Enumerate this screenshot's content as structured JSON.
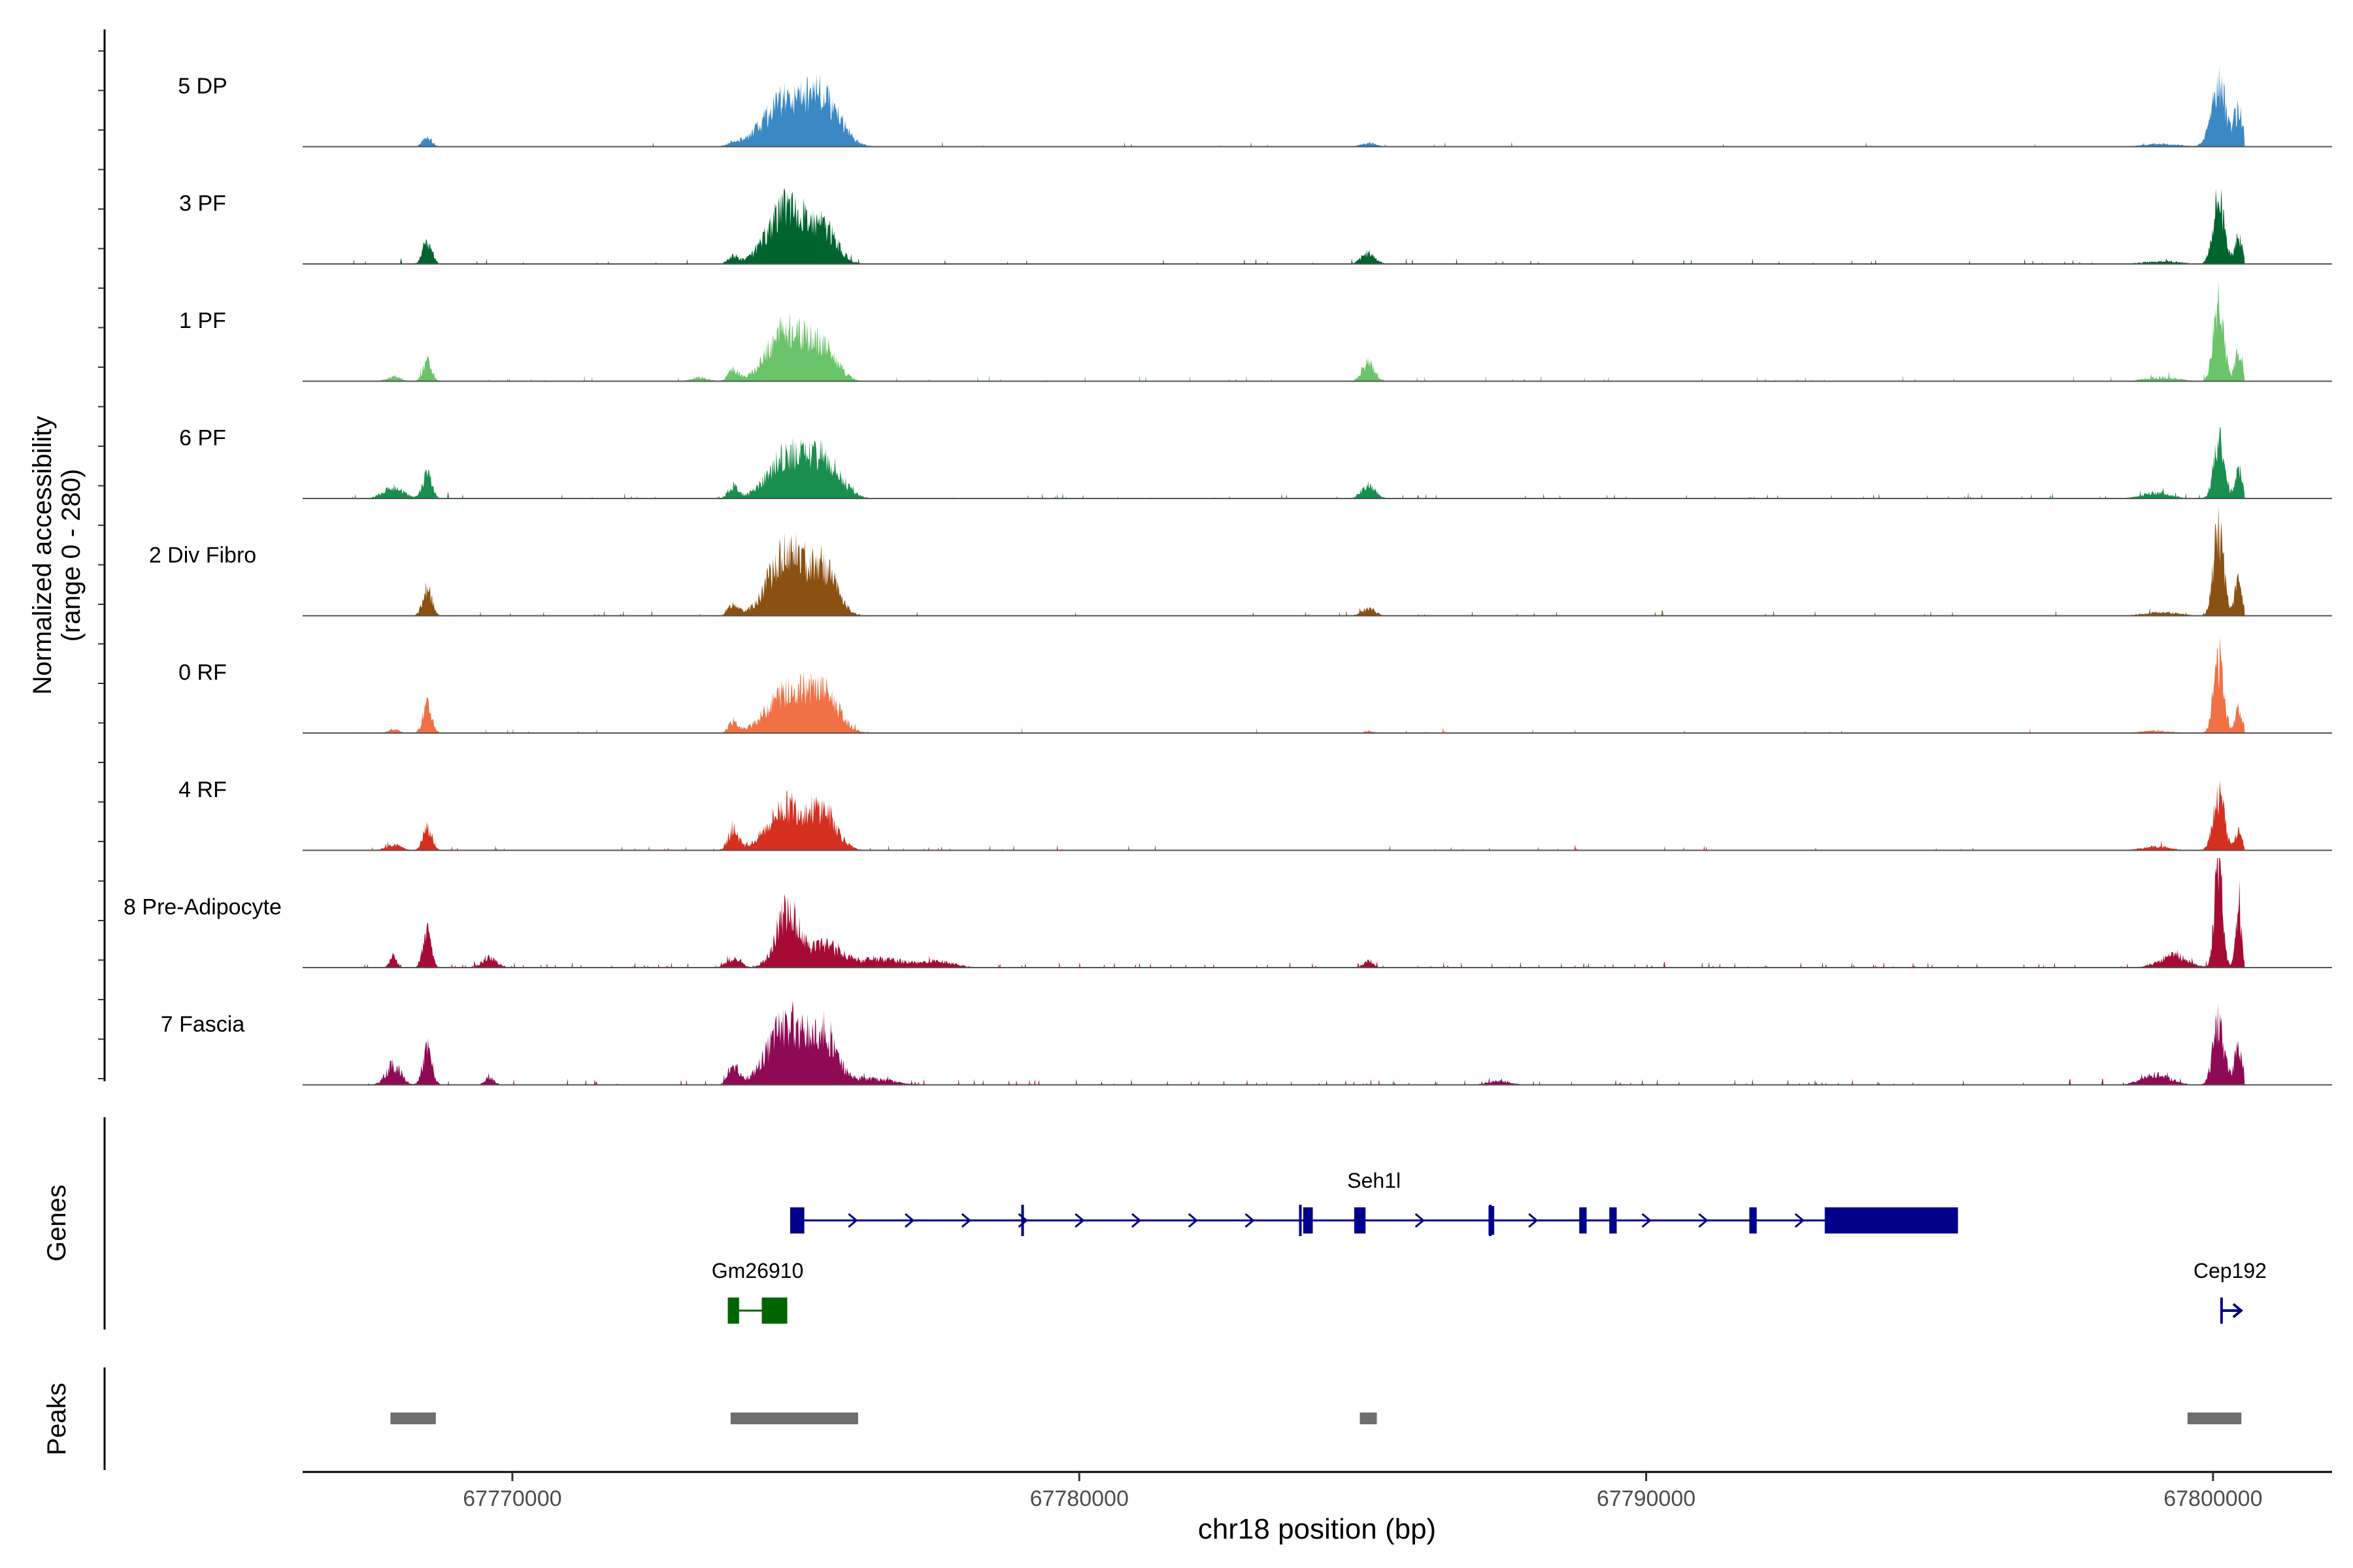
{
  "chart_data": {
    "type": "area",
    "title": "",
    "xlabel": "chr18 position (bp)",
    "ylabel_line1": "Normalized accessibility",
    "ylabel_line2": "(range 0 - 280)",
    "yrange": [
      0,
      280
    ],
    "xlim": [
      67766300,
      67802100
    ],
    "xticks": [
      67770000,
      67780000,
      67790000,
      67800000
    ],
    "xtick_labels": [
      "67770000",
      "67780000",
      "67790000",
      "67800000"
    ],
    "series": [
      {
        "name": "5 DP",
        "color": "#3A88C4",
        "noise": 0.01,
        "peaks": [
          [
            67768500,
            80,
            40
          ],
          [
            67773900,
            80,
            15
          ],
          [
            67774850,
            400,
            190
          ],
          [
            67775500,
            300,
            155
          ],
          [
            67785100,
            130,
            15
          ],
          [
            67799100,
            300,
            12
          ],
          [
            67800100,
            130,
            250
          ],
          [
            67800450,
            80,
            140
          ]
        ]
      },
      {
        "name": "3 PF",
        "color": "#00642F",
        "noise": 0.018,
        "peaks": [
          [
            67768500,
            80,
            95
          ],
          [
            67773900,
            90,
            30
          ],
          [
            67774850,
            330,
            235
          ],
          [
            67775500,
            230,
            130
          ],
          [
            67785100,
            120,
            45
          ],
          [
            67799100,
            300,
            12
          ],
          [
            67800100,
            100,
            260
          ],
          [
            67800450,
            70,
            110
          ]
        ]
      },
      {
        "name": "1 PF",
        "color": "#6BC46A",
        "noise": 0.02,
        "peaks": [
          [
            67767900,
            120,
            20
          ],
          [
            67768500,
            80,
            80
          ],
          [
            67773300,
            150,
            15
          ],
          [
            67773900,
            90,
            45
          ],
          [
            67774850,
            330,
            215
          ],
          [
            67775500,
            230,
            125
          ],
          [
            67785100,
            110,
            75
          ],
          [
            67799100,
            300,
            15
          ],
          [
            67800100,
            90,
            335
          ],
          [
            67800450,
            60,
            130
          ]
        ]
      },
      {
        "name": "6 PF",
        "color": "#1A8E4C",
        "noise": 0.032,
        "peaks": [
          [
            67767900,
            180,
            45
          ],
          [
            67768500,
            80,
            100
          ],
          [
            67773900,
            90,
            50
          ],
          [
            67774850,
            330,
            175
          ],
          [
            67775500,
            280,
            160
          ],
          [
            67785100,
            120,
            55
          ],
          [
            67799000,
            250,
            25
          ],
          [
            67800100,
            90,
            235
          ],
          [
            67800450,
            70,
            115
          ]
        ]
      },
      {
        "name": "2 Div Fibro",
        "color": "#8B5112",
        "noise": 0.02,
        "peaks": [
          [
            67768500,
            80,
            110
          ],
          [
            67773900,
            90,
            45
          ],
          [
            67774850,
            320,
            265
          ],
          [
            67775500,
            230,
            175
          ],
          [
            67785100,
            120,
            30
          ],
          [
            67799100,
            300,
            15
          ],
          [
            67800100,
            90,
            360
          ],
          [
            67800450,
            70,
            140
          ]
        ]
      },
      {
        "name": "0 RF",
        "color": "#F07145",
        "noise": 0.012,
        "peaks": [
          [
            67767900,
            100,
            15
          ],
          [
            67768500,
            80,
            110
          ],
          [
            67773900,
            80,
            45
          ],
          [
            67774850,
            350,
            170
          ],
          [
            67775500,
            260,
            150
          ],
          [
            67785100,
            100,
            8
          ],
          [
            67799000,
            250,
            10
          ],
          [
            67800100,
            90,
            300
          ],
          [
            67800450,
            60,
            110
          ]
        ]
      },
      {
        "name": "4 RF",
        "color": "#D5301F",
        "noise": 0.02,
        "peaks": [
          [
            67767900,
            130,
            25
          ],
          [
            67768500,
            80,
            95
          ],
          [
            67773900,
            90,
            85
          ],
          [
            67774850,
            330,
            180
          ],
          [
            67775500,
            230,
            145
          ],
          [
            67799000,
            250,
            15
          ],
          [
            67800100,
            100,
            225
          ],
          [
            67800450,
            60,
            80
          ]
        ]
      },
      {
        "name": "8 Pre-Adipocyte",
        "color": "#A60C33",
        "noise": 0.05,
        "peaks": [
          [
            67767900,
            60,
            50
          ],
          [
            67768500,
            70,
            150
          ],
          [
            67769600,
            130,
            40
          ],
          [
            67773900,
            120,
            40
          ],
          [
            67774850,
            200,
            225
          ],
          [
            67775500,
            300,
            90
          ],
          [
            67776500,
            400,
            35
          ],
          [
            67777500,
            300,
            25
          ],
          [
            67785100,
            80,
            30
          ],
          [
            67799300,
            250,
            50
          ],
          [
            67800100,
            70,
            460
          ],
          [
            67800450,
            50,
            280
          ]
        ]
      },
      {
        "name": "7 Fascia",
        "color": "#8E0A54",
        "noise": 0.04,
        "peaks": [
          [
            67767900,
            130,
            80
          ],
          [
            67768500,
            80,
            150
          ],
          [
            67769600,
            80,
            30
          ],
          [
            67773900,
            90,
            85
          ],
          [
            67774850,
            330,
            255
          ],
          [
            67775500,
            230,
            180
          ],
          [
            67776300,
            400,
            25
          ],
          [
            67787400,
            200,
            15
          ],
          [
            67799000,
            250,
            40
          ],
          [
            67800100,
            100,
            250
          ],
          [
            67800450,
            70,
            145
          ]
        ]
      }
    ],
    "genes_panel_label": "Genes",
    "genes": [
      {
        "name": "Seh1l",
        "color": "#00008B",
        "strand": "+",
        "start": 67774900,
        "end": 67795500,
        "exons": [
          [
            67774900,
            67775150
          ],
          [
            67783950,
            67784120
          ],
          [
            67784850,
            67785050
          ],
          [
            67787220,
            67787320
          ],
          [
            67788820,
            67788950
          ],
          [
            67789350,
            67789480
          ],
          [
            67791820,
            67791950
          ],
          [
            67793150,
            67795500
          ]
        ],
        "arrows": [
          67776000,
          67777000,
          67778000,
          67779000,
          67780000,
          67781000,
          67782000,
          67783000,
          67786000,
          67788000,
          67790000,
          67791000,
          67792700
        ]
      },
      {
        "name": "Gm26910",
        "color": "#006400",
        "strand": "+",
        "start": 67773800,
        "end": 67774850,
        "exons": [
          [
            67773800,
            67774000
          ],
          [
            67774400,
            67774850
          ]
        ],
        "arrows": []
      },
      {
        "name": "Cep192",
        "color": "#00008B",
        "strand": "+",
        "start": 67800150,
        "end": 67800550,
        "exons": [],
        "arrows": []
      }
    ],
    "peaks_panel_label": "Peaks",
    "peak_regions": [
      [
        67767850,
        67768650
      ],
      [
        67773850,
        67776100
      ],
      [
        67784950,
        67785250
      ],
      [
        67799550,
        67800500
      ]
    ]
  }
}
